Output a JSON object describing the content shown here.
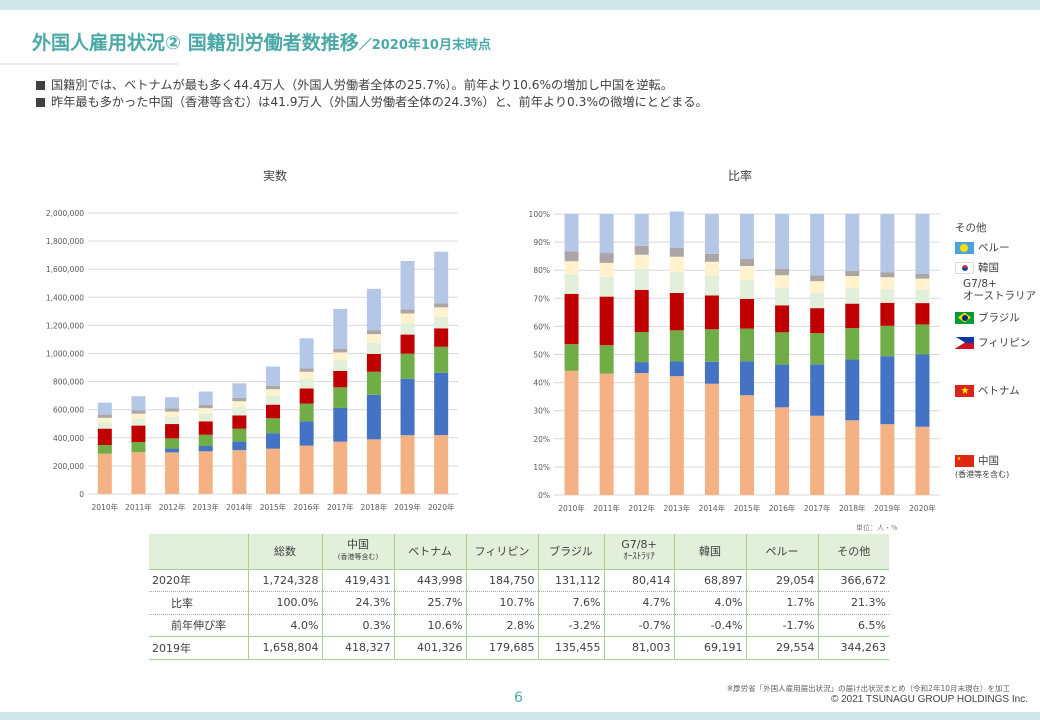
{
  "header": {
    "title": "外国人雇用状況② 国籍別労働者数推移",
    "subtitle": "／2020年10月末時点"
  },
  "bullets": [
    "国籍別では、ベトナムが最も多く44.4万人（外国人労働者全体の25.7%）。前年より10.6%の増加し中国を逆転。",
    "昨年最も多かった中国（香港等含む）は41.9万人（外国人労働者全体の24.3%）と、前年より0.3%の微増にとどまる。"
  ],
  "colors": {
    "accent": "#4aa9a7",
    "china": "#f4b183",
    "vietnam": "#4472c4",
    "philippines": "#70ad47",
    "brazil": "#c00000",
    "g78": "#e2efda",
    "korea": "#fff2cc",
    "peru": "#aba5a5",
    "other": "#b4c7e7"
  },
  "chart_data": [
    {
      "type": "bar",
      "stacked": true,
      "title": "実数",
      "xlabel": "",
      "ylabel": "",
      "ylim": [
        0,
        2000000
      ],
      "y_ticks": [
        "0",
        "200,000",
        "400,000",
        "600,000",
        "800,000",
        "1,000,000",
        "1,200,000",
        "1,400,000",
        "1,600,000",
        "1,800,000",
        "2,000,000"
      ],
      "grid": true,
      "categories": [
        "2010年",
        "2011年",
        "2012年",
        "2013年",
        "2014年",
        "2015年",
        "2016年",
        "2017年",
        "2018年",
        "2019年",
        "2020年"
      ],
      "series": [
        {
          "name": "中国",
          "color_key": "china",
          "values": [
            287105,
            297199,
            296388,
            303886,
            311831,
            322545,
            344658,
            372263,
            389117,
            418327,
            419431
          ]
        },
        {
          "name": "ベトナム",
          "color_key": "vietnam",
          "values": [
            0,
            0,
            26828,
            37537,
            61168,
            110013,
            172018,
            240259,
            316840,
            401326,
            443998
          ]
        },
        {
          "name": "フィリピン",
          "color_key": "philippines",
          "values": [
            61710,
            72867,
            72867,
            80170,
            91519,
            106533,
            127518,
            146798,
            164006,
            179685,
            184750
          ]
        },
        {
          "name": "ブラジル",
          "color_key": "brazil",
          "values": [
            116363,
            116839,
            101891,
            95505,
            94171,
            96672,
            106597,
            117299,
            127392,
            135455,
            131112
          ]
        },
        {
          "name": "G7/8+オーストラリア",
          "color_key": "g78",
          "values": [
            45000,
            50000,
            52000,
            55000,
            60000,
            65000,
            70000,
            76000,
            79000,
            81003,
            80414
          ]
        },
        {
          "name": "韓国",
          "color_key": "korea",
          "values": [
            32000,
            35000,
            37000,
            39000,
            42000,
            45000,
            49000,
            55000,
            62000,
            69191,
            68897
          ]
        },
        {
          "name": "ペルー",
          "color_key": "peru",
          "values": [
            23000,
            24000,
            23000,
            23000,
            23000,
            24000,
            25000,
            27000,
            28000,
            29554,
            29054
          ]
        },
        {
          "name": "その他",
          "color_key": "other",
          "values": [
            85000,
            100000,
            79000,
            95000,
            104000,
            137000,
            213000,
            282000,
            294000,
            344263,
            366672
          ]
        }
      ]
    },
    {
      "type": "bar",
      "stacked": true,
      "percent": true,
      "title": "比率",
      "xlabel": "",
      "ylabel": "",
      "ylim": [
        0,
        100
      ],
      "y_ticks": [
        "0%",
        "10%",
        "20%",
        "30%",
        "40%",
        "50%",
        "60%",
        "70%",
        "80%",
        "90%",
        "100%"
      ],
      "grid": true,
      "categories": [
        "2010年",
        "2011年",
        "2012年",
        "2013年",
        "2014年",
        "2015年",
        "2016年",
        "2017年",
        "2018年",
        "2019年",
        "2020年"
      ],
      "series": [
        {
          "name": "中国",
          "color_key": "china",
          "values": [
            44.2,
            43.2,
            43.4,
            42.3,
            39.6,
            35.5,
            31.2,
            28.2,
            26.6,
            25.2,
            24.3
          ]
        },
        {
          "name": "ベトナム",
          "color_key": "vietnam",
          "values": [
            0,
            0,
            3.9,
            5.2,
            7.8,
            12.1,
            15.2,
            18.3,
            21.6,
            24.2,
            25.7
          ]
        },
        {
          "name": "フィリピン",
          "color_key": "philippines",
          "values": [
            9.5,
            10.1,
            10.7,
            11.1,
            11.6,
            11.6,
            11.5,
            11.1,
            11.2,
            10.8,
            10.7
          ]
        },
        {
          "name": "ブラジル",
          "color_key": "brazil",
          "values": [
            17.9,
            17.3,
            15.0,
            13.3,
            12.0,
            10.6,
            9.6,
            8.9,
            8.7,
            8.2,
            7.6
          ]
        },
        {
          "name": "G7/8+オーストラリア",
          "color_key": "g78",
          "values": [
            7.0,
            7.0,
            7.5,
            7.5,
            7.0,
            6.8,
            6.2,
            5.5,
            5.5,
            4.9,
            4.7
          ]
        },
        {
          "name": "韓国",
          "color_key": "korea",
          "values": [
            4.6,
            5.0,
            5.0,
            5.4,
            5.0,
            4.9,
            4.5,
            4.1,
            4.3,
            4.2,
            4.0
          ]
        },
        {
          "name": "ペルー",
          "color_key": "peru",
          "values": [
            3.5,
            3.5,
            3.2,
            3.2,
            2.8,
            2.6,
            2.3,
            2.1,
            1.9,
            1.8,
            1.7
          ]
        },
        {
          "name": "その他",
          "color_key": "other",
          "values": [
            13.3,
            13.9,
            11.3,
            12.9,
            14.2,
            15.9,
            19.5,
            21.8,
            20.2,
            20.7,
            21.3
          ]
        }
      ]
    }
  ],
  "legend": {
    "items": [
      {
        "label": "その他",
        "flag": "none"
      },
      {
        "label": "ペルー",
        "flag": "palau-like-flag"
      },
      {
        "label": "韓国",
        "flag": "korea-flag"
      },
      {
        "label": "G7/8+",
        "label2": "オーストラリア",
        "flag": "none"
      },
      {
        "label": "ブラジル",
        "flag": "brazil-flag"
      },
      {
        "label": "フィリピン",
        "flag": "philippines-flag"
      },
      {
        "label": "ベトナム",
        "flag": "vietnam-flag"
      },
      {
        "label": "中国",
        "label2": "(香港等を含む)",
        "flag": "china-flag"
      }
    ]
  },
  "table": {
    "unit": "単位：人・%",
    "headers": [
      {
        "label": "",
        "sub": ""
      },
      {
        "label": "総数",
        "sub": ""
      },
      {
        "label": "中国",
        "sub": "(香港等含む)"
      },
      {
        "label": "ベトナム",
        "sub": ""
      },
      {
        "label": "フィリピン",
        "sub": ""
      },
      {
        "label": "ブラジル",
        "sub": ""
      },
      {
        "label": "G7/8+",
        "sub": "ｵｰｽﾄﾗﾘｱ"
      },
      {
        "label": "韓国",
        "sub": ""
      },
      {
        "label": "ペルー",
        "sub": ""
      },
      {
        "label": "その他",
        "sub": ""
      }
    ],
    "rows": [
      {
        "label": "2020年",
        "values": [
          "1,724,328",
          "419,431",
          "443,998",
          "184,750",
          "131,112",
          "80,414",
          "68,897",
          "29,054",
          "366,672"
        ]
      },
      {
        "label": "比率",
        "values": [
          "100.0%",
          "24.3%",
          "25.7%",
          "10.7%",
          "7.6%",
          "4.7%",
          "4.0%",
          "1.7%",
          "21.3%"
        ]
      },
      {
        "label": "前年伸び率",
        "values": [
          "4.0%",
          "0.3%",
          "10.6%",
          "2.8%",
          "-3.2%",
          "-0.7%",
          "-0.4%",
          "-1.7%",
          "6.5%"
        ]
      },
      {
        "label": "2019年",
        "values": [
          "1,658,804",
          "418,327",
          "401,326",
          "179,685",
          "135,455",
          "81,003",
          "69,191",
          "29,554",
          "344,263"
        ]
      }
    ]
  },
  "footer": {
    "page_number": "6",
    "source": "※厚労省「外国人雇用届出状況」の届け出状況まとめ（令和2年10月末現在）を加工",
    "copyright": "© 2021 TSUNAGU GROUP HOLDINGS Inc."
  }
}
